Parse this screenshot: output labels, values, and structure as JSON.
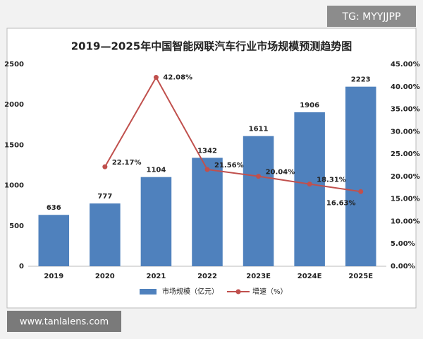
{
  "chart_data": {
    "type": "bar-line",
    "title": "2019—2025年中国智能网联汽车行业市场规模预测趋势图",
    "categories": [
      "2019",
      "2020",
      "2021",
      "2022",
      "2023E",
      "2024E",
      "2025E"
    ],
    "series": [
      {
        "name": "市场规模（亿元）",
        "type": "bar",
        "color": "#4f81bd",
        "values": [
          636,
          777,
          1104,
          1342,
          1611,
          1906,
          2223
        ]
      },
      {
        "name": "增速（%）",
        "type": "line",
        "axis": "y2",
        "color": "#c0504d",
        "values": [
          null,
          22.17,
          42.08,
          21.56,
          20.04,
          18.31,
          16.63
        ],
        "value_labels": [
          null,
          "22.17%",
          "42.08%",
          "21.56%",
          "20.04%",
          "18.31%",
          "16.63%"
        ]
      }
    ],
    "ylim": [
      0,
      2500
    ],
    "yticks": [
      0,
      500,
      1000,
      1500,
      2000,
      2500
    ],
    "y2lim": [
      0,
      45
    ],
    "y2ticks": [
      {
        "value": 0,
        "label": "0.00%"
      },
      {
        "value": 5,
        "label": "5.00%"
      },
      {
        "value": 10,
        "label": "10.00%"
      },
      {
        "value": 15,
        "label": "15.00%"
      },
      {
        "value": 20,
        "label": "20.00%"
      },
      {
        "value": 25,
        "label": "25.00%"
      },
      {
        "value": 30,
        "label": "30.00%"
      },
      {
        "value": 35,
        "label": "35.00%"
      },
      {
        "value": 40,
        "label": "40.00%"
      },
      {
        "value": 45,
        "label": "45.00%"
      }
    ],
    "grid": false,
    "legend": "bottom"
  },
  "watermarks": {
    "top_right": "TG: MYYJJPP",
    "bottom_left": "www.tanlalens.com"
  }
}
